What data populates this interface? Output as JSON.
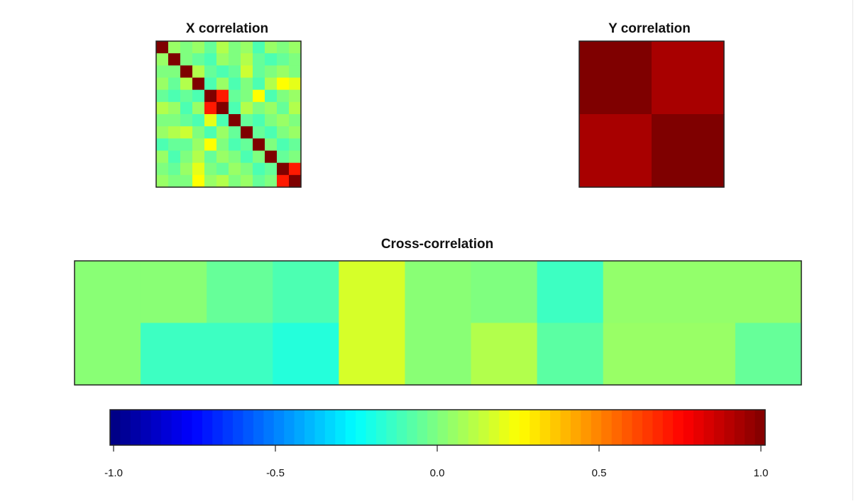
{
  "chart_data": [
    {
      "type": "heatmap",
      "title": "X correlation",
      "rows": 12,
      "cols": 12,
      "values": [
        [
          1.0,
          0.05,
          0.0,
          0.05,
          -0.05,
          0.1,
          0.0,
          0.05,
          -0.1,
          0.05,
          0.0,
          0.05
        ],
        [
          0.05,
          1.0,
          0.0,
          -0.05,
          -0.1,
          0.05,
          0.0,
          0.1,
          -0.05,
          -0.1,
          -0.05,
          0.0
        ],
        [
          0.0,
          0.0,
          1.0,
          0.1,
          -0.05,
          -0.1,
          -0.05,
          0.15,
          -0.05,
          0.0,
          0.05,
          0.0
        ],
        [
          0.05,
          -0.05,
          0.1,
          1.0,
          -0.1,
          0.05,
          -0.1,
          0.0,
          -0.1,
          0.1,
          0.25,
          0.2
        ],
        [
          -0.05,
          -0.1,
          -0.05,
          -0.1,
          1.0,
          0.7,
          -0.05,
          0.0,
          0.25,
          -0.1,
          0.0,
          0.05
        ],
        [
          0.1,
          0.05,
          -0.1,
          0.05,
          0.7,
          1.0,
          -0.1,
          0.1,
          0.0,
          0.05,
          -0.05,
          0.1
        ],
        [
          0.0,
          0.0,
          -0.05,
          -0.1,
          0.2,
          -0.1,
          1.0,
          -0.05,
          -0.1,
          0.0,
          0.05,
          0.0
        ],
        [
          0.05,
          0.1,
          0.15,
          0.0,
          -0.1,
          0.05,
          -0.05,
          1.0,
          -0.05,
          -0.1,
          0.0,
          0.05
        ],
        [
          -0.1,
          -0.05,
          -0.05,
          0.05,
          0.25,
          0.0,
          -0.1,
          -0.05,
          1.0,
          0.0,
          -0.1,
          -0.05
        ],
        [
          0.05,
          -0.1,
          0.0,
          0.1,
          -0.05,
          0.05,
          0.0,
          -0.1,
          0.0,
          1.0,
          -0.05,
          0.0
        ],
        [
          0.0,
          -0.05,
          0.05,
          0.2,
          0.0,
          -0.05,
          0.05,
          0.0,
          -0.1,
          -0.05,
          1.0,
          0.7
        ],
        [
          0.05,
          0.0,
          0.0,
          0.25,
          0.05,
          0.1,
          0.0,
          0.05,
          -0.05,
          0.0,
          0.7,
          1.0
        ]
      ]
    },
    {
      "type": "heatmap",
      "title": "Y correlation",
      "rows": 2,
      "cols": 2,
      "values": [
        [
          1.0,
          0.92
        ],
        [
          0.92,
          1.0
        ]
      ]
    },
    {
      "type": "heatmap",
      "title": "Cross-correlation",
      "rows": 2,
      "cols": 11,
      "values": [
        [
          0.02,
          0.02,
          -0.05,
          -0.1,
          0.17,
          0.02,
          0.0,
          -0.13,
          0.04,
          0.04,
          0.04
        ],
        [
          0.02,
          -0.13,
          -0.13,
          -0.18,
          0.17,
          0.02,
          0.1,
          -0.07,
          0.05,
          0.05,
          -0.05
        ]
      ]
    }
  ],
  "colorbar": {
    "range": [
      -1.0,
      1.0
    ],
    "ticks": [
      -1.0,
      -0.5,
      0.0,
      0.5,
      1.0
    ],
    "tick_labels": [
      "-1.0",
      "-0.5",
      "0.0",
      "0.5",
      "1.0"
    ],
    "colormap": "jet",
    "colors": [
      "#00007F",
      "#0000FF",
      "#007FFF",
      "#00FFFF",
      "#7FFF7F",
      "#FFFF00",
      "#FF7F00",
      "#FF0000",
      "#7F0000"
    ]
  }
}
